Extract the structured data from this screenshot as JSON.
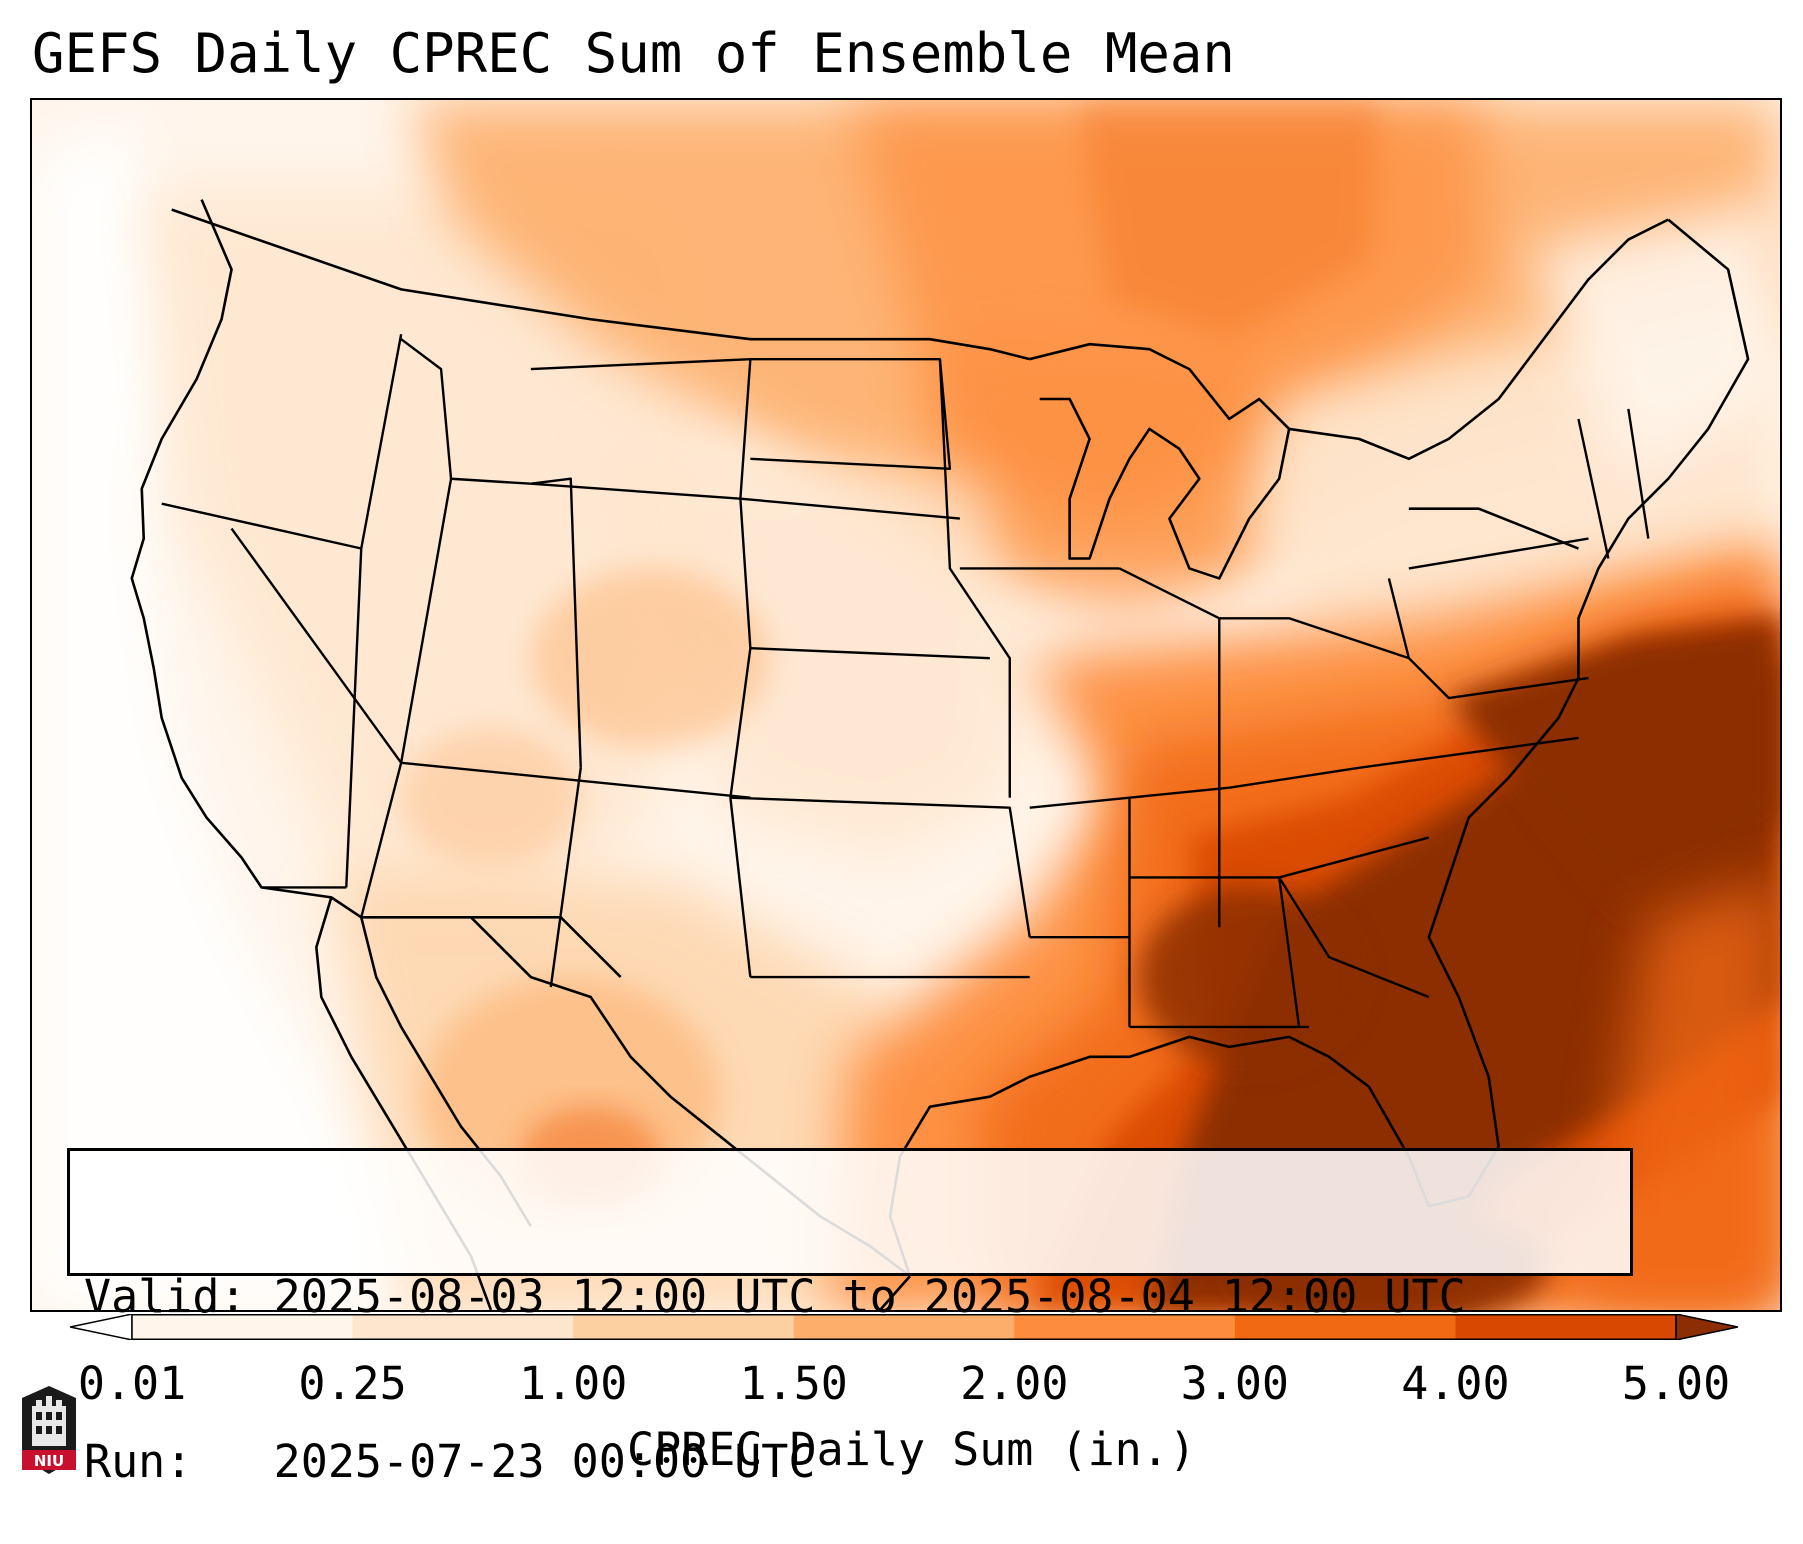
{
  "title": "GEFS Daily CPREC Sum of Ensemble Mean",
  "info": {
    "valid": "Valid: 2025-08-03 12:00 UTC to 2025-08-04 12:00 UTC",
    "run": "Run:   2025-07-23 00:00 UTC"
  },
  "colorbar": {
    "label": "CPREC Daily Sum (in.)",
    "ticks": [
      "0.01",
      "0.25",
      "1.00",
      "1.50",
      "2.00",
      "3.00",
      "4.00",
      "5.00"
    ],
    "colors": [
      "#fff5eb",
      "#fee6ce",
      "#fdd0a2",
      "#fdae6b",
      "#fd8d3c",
      "#f16913",
      "#d94801",
      "#8c2d04"
    ],
    "extend": "both",
    "under_color": "#ffffff",
    "over_color": "#7f2704"
  },
  "map": {
    "region": "CONUS",
    "colors": {
      "light": "#fff5eb",
      "pale": "#fee6ce",
      "tan": "#fdd0a2",
      "mid": "#fdae6b",
      "orange": "#fd8d3c",
      "dark_orange": "#f16913",
      "rust": "#d94801",
      "max": "#8c2d04",
      "border": "#000000"
    }
  },
  "logo": {
    "text": "NIU",
    "icon": "niu-logo-icon"
  }
}
